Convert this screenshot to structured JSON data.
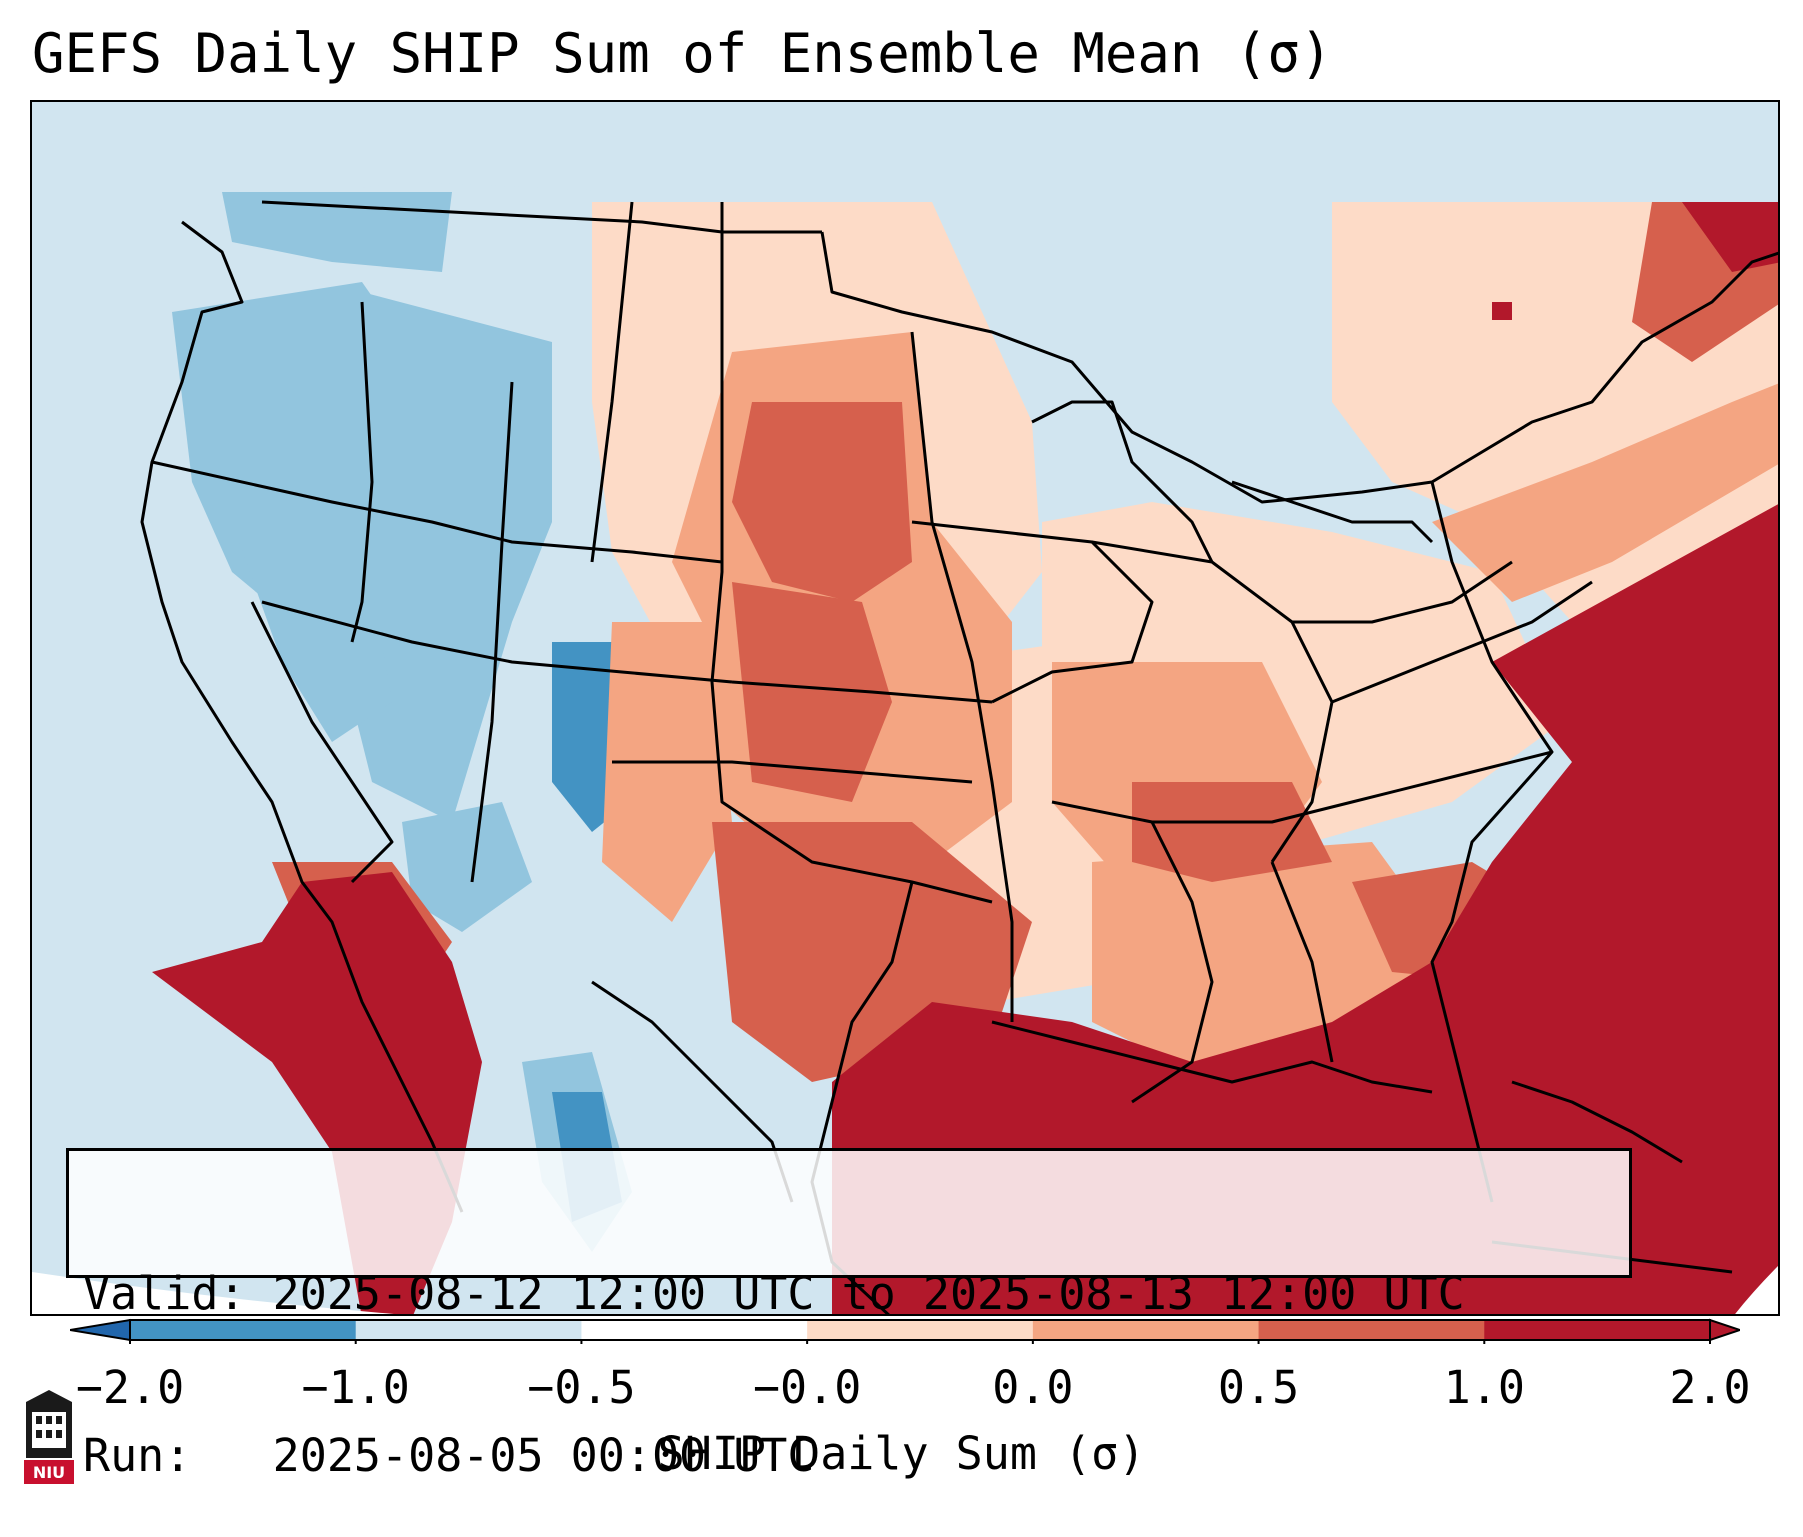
{
  "title": "GEFS Daily SHIP Sum of Ensemble Mean (σ)",
  "info": {
    "valid_line": "Valid: 2025-08-12 12:00 UTC to 2025-08-13 12:00 UTC",
    "run_line": "Run:   2025-08-05 00:00 UTC"
  },
  "colorbar": {
    "label": "SHIP Daily Sum (σ)",
    "ticks": [
      "−2.0",
      "−1.0",
      "−0.5",
      "−0.0",
      "0.0",
      "0.5",
      "1.0",
      "2.0"
    ],
    "colors": [
      "#4393c3",
      "#92c5de",
      "#d1e5f0",
      "#ffffff",
      "#fddbc7",
      "#f4a582",
      "#d6604d",
      "#b2182b"
    ],
    "extend_low_color": "#2166ac",
    "extend_high_color": "#b2182b"
  },
  "logo": {
    "text": "NIU"
  }
}
